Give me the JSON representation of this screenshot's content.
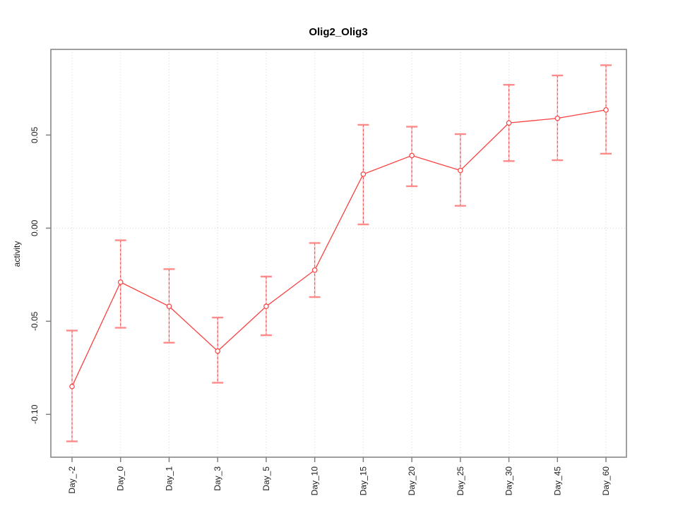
{
  "title": "Olig2_Olig3",
  "chart_data": {
    "type": "line",
    "title": "Olig2_Olig3",
    "xlabel": "",
    "ylabel": "activity",
    "categories": [
      "Day_-2",
      "Day_0",
      "Day_1",
      "Day_3",
      "Day_5",
      "Day_10",
      "Day_15",
      "Day_20",
      "Day_25",
      "Day_30",
      "Day_45",
      "Day_60"
    ],
    "series": [
      {
        "name": "activity",
        "values": [
          -0.085,
          -0.029,
          -0.042,
          -0.066,
          -0.042,
          -0.0225,
          0.029,
          0.039,
          0.031,
          0.0565,
          0.059,
          0.0635
        ],
        "upper": [
          -0.055,
          -0.0065,
          -0.022,
          -0.048,
          -0.026,
          -0.008,
          0.0555,
          0.0545,
          0.0505,
          0.077,
          0.082,
          0.0875
        ],
        "lower": [
          -0.1145,
          -0.0535,
          -0.0615,
          -0.083,
          -0.0575,
          -0.037,
          0.002,
          0.0225,
          0.012,
          0.036,
          0.0365,
          0.04
        ],
        "color": "#f94040"
      }
    ],
    "yticks": [
      -0.1,
      -0.05,
      0.0,
      0.05
    ],
    "ylim": [
      -0.123,
      0.096
    ],
    "point_style": "open-circle",
    "legend": "none",
    "grid": {
      "vertical": "dotted line at every category",
      "horizontal": "dotted line at y=0 only",
      "color": "#d6d6d6"
    },
    "colors": {
      "line": "#f94040",
      "error_bar_fill": "#ffb5b5",
      "error_bar_dash": "#e54848",
      "error_cap": "#ff8a8a",
      "axis": "#808080",
      "gridline": "#d6d6d6",
      "text": "#1a1a1a",
      "background": "#ffffff"
    }
  }
}
